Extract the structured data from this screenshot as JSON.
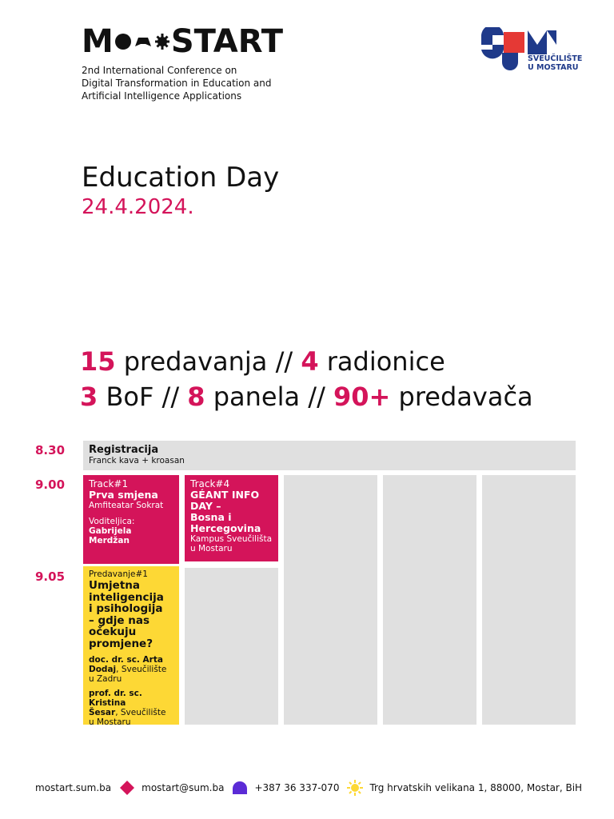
{
  "header": {
    "logo_text_left": "M",
    "logo_text_right": "START",
    "conference_lines": [
      "2nd International Conference on",
      "Digital Transformation in Education and",
      "Artificial Intelligence Applications"
    ],
    "university_lines": [
      "SVEUČILIŠTE",
      "U MOSTARU"
    ]
  },
  "event": {
    "title": "Education Day",
    "date": "24.4.2024."
  },
  "stats": {
    "line1": {
      "n1": "15",
      "t1": " predavanja // ",
      "n2": "4",
      "t2": " radionice"
    },
    "line2": {
      "n1": "3",
      "t1": " BoF // ",
      "n2": "8",
      "t2": " panela // ",
      "n3": "90+",
      "t3": " predavača"
    }
  },
  "schedule": {
    "times": [
      "8.30",
      "9.00",
      "9.05"
    ],
    "registration": {
      "title": "Registracija",
      "subtitle": "Franck kava + kroasan"
    },
    "track1": {
      "label": "Track#1",
      "title": "Prva smjena",
      "venue": "Amfiteatar Sokrat",
      "host_label": "Voditeljica:",
      "host_name": "Gabrijela Merdžan"
    },
    "track4": {
      "label": "Track#4",
      "title_lines": [
        "GÉANT INFO",
        "DAY –",
        "Bosna i",
        "Hercegovina"
      ],
      "venue_lines": [
        "Kampus Sveučilišta",
        "u Mostaru"
      ]
    },
    "lecture1": {
      "label": "Predavanje#1",
      "title_lines": [
        "Umjetna",
        "inteligencija",
        "i psihologija",
        "– gdje nas",
        "očekuju",
        "promjene?"
      ],
      "speaker1": {
        "name_line1": "doc. dr. sc. Arta",
        "name_line2": "Dodaj",
        "affil_line1": ", Sveučilište",
        "affil_line2": "u Zadru"
      },
      "speaker2": {
        "name_line1": "prof. dr. sc. Kristina",
        "name_line2": "Šesar",
        "affil_line1": ", Sveučilište",
        "affil_line2": "u Mostaru"
      }
    }
  },
  "footer": {
    "website": "mostart.sum.ba",
    "email": "mostart@sum.ba",
    "phone": "+387 36 337-070",
    "address": "Trg hrvatskih velikana 1, 88000, Mostar, BiH",
    "icons": [
      "diamond-icon",
      "dome-icon",
      "sun-icon"
    ]
  },
  "colors": {
    "accent_pink": "#d4145a",
    "yellow": "#fdd835",
    "grey": "#e0e0e0",
    "navy": "#1f3a8a",
    "red": "#e53935"
  }
}
